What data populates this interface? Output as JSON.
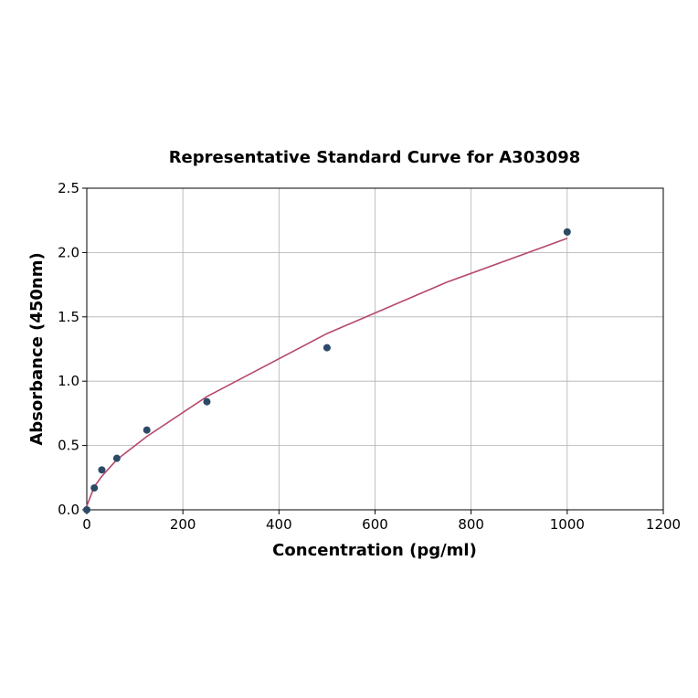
{
  "chart_data": {
    "type": "scatter",
    "title": "Representative Standard Curve for A303098",
    "x_label": "Concentration (pg/ml)",
    "y_label": "Absorbance (450nm)",
    "xlim": [
      0,
      1200
    ],
    "ylim": [
      0,
      2.5
    ],
    "xticks": [
      0,
      200,
      400,
      600,
      800,
      1000,
      1200
    ],
    "yticks": [
      {
        "value": 0,
        "label": "0.0"
      },
      0.5,
      {
        "value": 1,
        "label": "1.0"
      },
      1.5,
      {
        "value": 2,
        "label": "2.0"
      },
      2.5
    ],
    "grid": true,
    "series": [
      {
        "mode": "line",
        "color": "#b5486a",
        "x": [
          0,
          15.6,
          31.25,
          62.5,
          125,
          250,
          500,
          750,
          1000
        ],
        "values": [
          0.03,
          0.18,
          0.26,
          0.39,
          0.57,
          0.88,
          1.37,
          1.77,
          2.11
        ]
      },
      {
        "mode": "markers",
        "color": "#2c4a68",
        "x": [
          0,
          15.6,
          31.25,
          62.5,
          125,
          250,
          500,
          1000
        ],
        "values": [
          0,
          0.17,
          0.31,
          0.4,
          0.62,
          0.84,
          1.26,
          2.16
        ]
      }
    ]
  }
}
